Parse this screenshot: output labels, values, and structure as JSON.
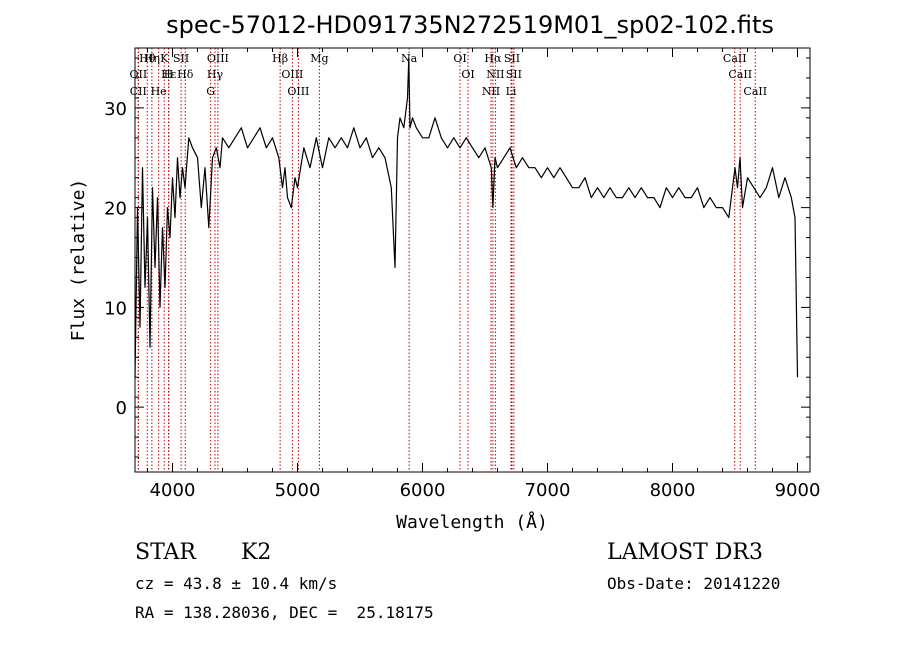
{
  "chart_data": {
    "type": "line",
    "title": "spec-57012-HD091735N272519M01_sp02-102.fits",
    "xlabel": "Wavelength (Å)",
    "ylabel": "Flux (relative)",
    "xlim": [
      3700,
      9100
    ],
    "ylim": [
      -6.5,
      36
    ],
    "x_ticks": [
      4000,
      5000,
      6000,
      7000,
      8000,
      9000
    ],
    "x_tick_labels": [
      "4000",
      "5000",
      "6000",
      "7000",
      "8000",
      "9000"
    ],
    "y_ticks": [
      0,
      10,
      20,
      30
    ],
    "y_tick_labels": [
      "0",
      "10",
      "20",
      "30"
    ],
    "grid": false,
    "series": [
      {
        "name": "spectrum",
        "color": "#000000",
        "x": [
          3700,
          3720,
          3740,
          3760,
          3780,
          3800,
          3820,
          3840,
          3860,
          3880,
          3900,
          3920,
          3940,
          3960,
          3980,
          4000,
          4020,
          4040,
          4060,
          4080,
          4100,
          4130,
          4160,
          4200,
          4230,
          4260,
          4290,
          4320,
          4350,
          4380,
          4400,
          4450,
          4500,
          4550,
          4600,
          4650,
          4700,
          4750,
          4800,
          4850,
          4880,
          4900,
          4920,
          4950,
          4980,
          5000,
          5050,
          5100,
          5150,
          5200,
          5250,
          5300,
          5350,
          5400,
          5450,
          5500,
          5550,
          5600,
          5650,
          5700,
          5750,
          5780,
          5800,
          5820,
          5850,
          5880,
          5890,
          5900,
          5920,
          5950,
          6000,
          6050,
          6100,
          6150,
          6200,
          6250,
          6300,
          6350,
          6400,
          6450,
          6500,
          6550,
          6563,
          6580,
          6600,
          6650,
          6700,
          6750,
          6800,
          6850,
          6900,
          6950,
          7000,
          7050,
          7100,
          7150,
          7200,
          7250,
          7300,
          7350,
          7400,
          7450,
          7500,
          7550,
          7600,
          7650,
          7700,
          7750,
          7800,
          7850,
          7900,
          7950,
          8000,
          8050,
          8100,
          8150,
          8200,
          8250,
          8300,
          8350,
          8400,
          8450,
          8500,
          8520,
          8540,
          8560,
          8600,
          8650,
          8700,
          8750,
          8800,
          8850,
          8900,
          8950,
          8980,
          9000
        ],
        "y": [
          3,
          20,
          8,
          24,
          12,
          19,
          6,
          22,
          14,
          21,
          10,
          18,
          12,
          20,
          17,
          23,
          19,
          25,
          21,
          24,
          22,
          27,
          26,
          25,
          20,
          24,
          18,
          25,
          26,
          24,
          27,
          26,
          27,
          28,
          26,
          27,
          28,
          26,
          27,
          25,
          22,
          24,
          21,
          20,
          23,
          22,
          26,
          24,
          27,
          24,
          27,
          26,
          27,
          26,
          28,
          26,
          27,
          25,
          26,
          25,
          22,
          14,
          27,
          29,
          28,
          31,
          35,
          28,
          29,
          28,
          27,
          27,
          29,
          27,
          26,
          27,
          26,
          27,
          26,
          25,
          26,
          24,
          20,
          25,
          24,
          25,
          26,
          24,
          25,
          24,
          24,
          23,
          24,
          23,
          24,
          23,
          22,
          22,
          23,
          21,
          22,
          21,
          22,
          21,
          21,
          22,
          21,
          22,
          21,
          21,
          20,
          22,
          21,
          22,
          21,
          21,
          22,
          20,
          21,
          20,
          20,
          19,
          24,
          22,
          25,
          20,
          23,
          22,
          21,
          22,
          24,
          21,
          23,
          21,
          19,
          3
        ]
      }
    ],
    "line_labels": [
      {
        "text": "Hθ",
        "x": 3798
      },
      {
        "text": "OII",
        "x": 3727
      },
      {
        "text": "CII",
        "x": 3726
      },
      {
        "text": "Hη",
        "x": 3835
      },
      {
        "text": "K",
        "x": 3934
      },
      {
        "text": "H",
        "x": 3968
      },
      {
        "text": "He",
        "x": 3889
      },
      {
        "text": "Hε",
        "x": 3970
      },
      {
        "text": "SII",
        "x": 4069
      },
      {
        "text": "Hδ",
        "x": 4102
      },
      {
        "text": "OIII",
        "x": 4363
      },
      {
        "text": "Hγ",
        "x": 4340
      },
      {
        "text": "G",
        "x": 4305
      },
      {
        "text": "Hβ",
        "x": 4861
      },
      {
        "text": "OIII",
        "x": 4959
      },
      {
        "text": "OIII",
        "x": 5007
      },
      {
        "text": "Mg",
        "x": 5175
      },
      {
        "text": "Na",
        "x": 5893
      },
      {
        "text": "OI",
        "x": 6300
      },
      {
        "text": "OI",
        "x": 6364
      },
      {
        "text": "Hα",
        "x": 6563
      },
      {
        "text": "NII",
        "x": 6583
      },
      {
        "text": "NII",
        "x": 6548
      },
      {
        "text": "SII",
        "x": 6716
      },
      {
        "text": "Li",
        "x": 6708
      },
      {
        "text": "SII",
        "x": 6731
      },
      {
        "text": "CaII",
        "x": 8498
      },
      {
        "text": "CaII",
        "x": 8542
      },
      {
        "text": "CaII",
        "x": 8662
      }
    ],
    "line_marker_color": "#c00000"
  },
  "info": {
    "object_class": "STAR",
    "subclass": "K2",
    "survey": "LAMOST DR3",
    "cz": "cz = 43.8 ± 10.4 km/s",
    "obs_date": "Obs-Date: 20141220",
    "coords": "RA = 138.28036, DEC =  25.18175"
  }
}
